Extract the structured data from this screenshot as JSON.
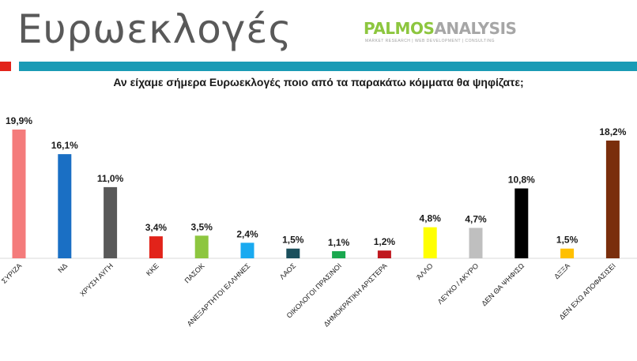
{
  "slide": {
    "title": "Ευρωεκλογές",
    "question": "Αν είχαμε σήμερα Ευρωεκλογές ποιο από τα παρακάτω κόμματα θα ψηφίζατε;"
  },
  "logo": {
    "part1": "PALMOS",
    "part2": "ANALYSIS",
    "subtitle": "MARKET RESEARCH | WEB DEVELOPMENT | CONSULTING"
  },
  "colors": {
    "accent_red": "#e2231a",
    "accent_bar": "#1a9bb5"
  },
  "chart_data": {
    "type": "bar",
    "categories": [
      "ΣΥΡΙΖΑ",
      "ΝΔ",
      "ΧΡΥΣΗ ΑΥΓΗ",
      "ΚΚΕ",
      "ΠΑΣΟΚ",
      "ΑΝΕΞΑΡΤΗΤΟΙ ΕΛΛΗΝΕΣ",
      "ΛΑΟΣ",
      "ΟΙΚΟΛΟΓΟΙ ΠΡΑΣΙΝΟΙ",
      "ΔΗΜΟΚΡΑΤΙΚΗ ΑΡΙΣΤΕΡΑ",
      "ΆΛΛΟ",
      "ΛΕΥΚΟ / ΑΚΥΡΟ",
      "ΔΕΝ ΘΑ ΨΗΦΙΣΩ",
      "ΔΞΞΑ",
      "ΔΕΝ ΕΧΩ ΑΠΟΦΑΣΙΣΕΙ"
    ],
    "values": [
      19.9,
      16.1,
      11.0,
      3.4,
      3.5,
      2.4,
      1.5,
      1.1,
      1.2,
      4.8,
      4.7,
      10.8,
      1.5,
      18.2
    ],
    "value_labels": [
      "19,9%",
      "16,1%",
      "11,0%",
      "3,4%",
      "3,5%",
      "2,4%",
      "1,5%",
      "1,1%",
      "1,2%",
      "4,8%",
      "4,7%",
      "10,8%",
      "1,5%",
      "18,2%"
    ],
    "colors": [
      "#f47b7b",
      "#1a6fc4",
      "#595959",
      "#e2231a",
      "#8dc63f",
      "#1aaaf0",
      "#1a4f5c",
      "#1aa84f",
      "#c0181e",
      "#ffff00",
      "#bfbfbf",
      "#000000",
      "#ffc000",
      "#7a2e0c"
    ],
    "ylim": [
      0,
      21
    ],
    "grid": false,
    "legend": "none"
  }
}
